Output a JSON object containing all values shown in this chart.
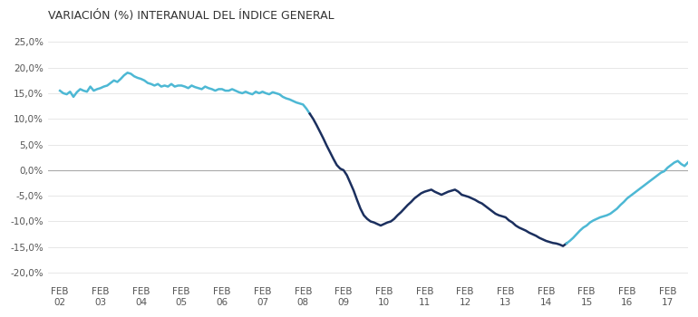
{
  "title": "VARIACIÓN (%) INTERANUAL DEL ÍNDICE GENERAL",
  "title_fontsize": 9,
  "color_light_blue": "#4DB8D4",
  "color_dark_navy": "#1A2F5A",
  "ylim": [
    -0.22,
    0.27
  ],
  "yticks": [
    -0.2,
    -0.15,
    -0.1,
    -0.05,
    0.0,
    0.05,
    0.1,
    0.15,
    0.2,
    0.25
  ],
  "ytick_labels": [
    "-20,0%",
    "-15,0%",
    "-10,0%",
    "-5,0%",
    "0,0%",
    "5,0%",
    "10,0%",
    "15,0%",
    "20,0%",
    "25,0%"
  ],
  "xtick_labels": [
    "FEB\n02",
    "FEB\n03",
    "FEB\n04",
    "FEB\n05",
    "FEB\n06",
    "FEB\n07",
    "FEB\n08",
    "FEB\n09",
    "FEB\n10",
    "FEB\n11",
    "FEB\n12",
    "FEB\n13",
    "FEB\n14",
    "FEB\n15",
    "FEB\n16",
    "FEB\n17"
  ],
  "segment1_color": "#4DB8D4",
  "segment2_color": "#1B2F5E",
  "segment3_color": "#4DB8D4",
  "background_color": "#ffffff",
  "line_width": 1.8,
  "data": {
    "t": [
      0,
      0.083,
      0.167,
      0.25,
      0.333,
      0.417,
      0.5,
      0.583,
      0.667,
      0.75,
      0.833,
      0.917,
      1,
      1.083,
      1.167,
      1.25,
      1.333,
      1.417,
      1.5,
      1.583,
      1.667,
      1.75,
      1.833,
      1.917,
      2,
      2.083,
      2.167,
      2.25,
      2.333,
      2.417,
      2.5,
      2.583,
      2.667,
      2.75,
      2.833,
      2.917,
      3,
      3.083,
      3.167,
      3.25,
      3.333,
      3.417,
      3.5,
      3.583,
      3.667,
      3.75,
      3.833,
      3.917,
      4,
      4.083,
      4.167,
      4.25,
      4.333,
      4.417,
      4.5,
      4.583,
      4.667,
      4.75,
      4.833,
      4.917,
      5,
      5.083,
      5.167,
      5.25,
      5.333,
      5.417,
      5.5,
      5.583,
      5.667,
      5.75,
      5.833,
      5.917,
      6,
      6.083,
      6.167,
      6.25,
      6.333,
      6.417,
      6.5,
      6.583,
      6.667,
      6.75,
      6.833,
      6.917,
      7,
      7.083,
      7.167,
      7.25,
      7.333,
      7.417,
      7.5,
      7.583,
      7.667,
      7.75,
      7.833,
      7.917,
      8,
      8.083,
      8.167,
      8.25,
      8.333,
      8.417,
      8.5,
      8.583,
      8.667,
      8.75,
      8.833,
      8.917,
      9,
      9.083,
      9.167,
      9.25,
      9.333,
      9.417,
      9.5,
      9.583,
      9.667,
      9.75,
      9.833,
      9.917,
      10,
      10.083,
      10.167,
      10.25,
      10.333,
      10.417,
      10.5,
      10.583,
      10.667,
      10.75,
      10.833,
      10.917,
      11,
      11.083,
      11.167,
      11.25,
      11.333,
      11.417,
      11.5,
      11.583,
      11.667,
      11.75,
      11.833,
      11.917,
      12,
      12.083,
      12.167,
      12.25,
      12.333,
      12.417,
      12.5,
      12.583,
      12.667,
      12.75,
      12.833,
      12.917,
      13,
      13.083,
      13.167,
      13.25,
      13.333,
      13.417,
      13.5,
      13.583,
      13.667,
      13.75,
      13.833,
      13.917,
      14,
      14.083,
      14.167,
      14.25,
      14.333,
      14.417,
      14.5,
      14.583,
      14.667,
      14.75,
      14.833,
      14.917,
      15,
      15.083,
      15.167,
      15.25,
      15.333,
      15.417,
      15.5,
      15.583,
      15.667,
      15.75,
      15.833,
      15.917
    ],
    "v": [
      0.155,
      0.15,
      0.148,
      0.153,
      0.143,
      0.152,
      0.158,
      0.155,
      0.153,
      0.163,
      0.155,
      0.158,
      0.16,
      0.163,
      0.165,
      0.17,
      0.175,
      0.172,
      0.178,
      0.185,
      0.19,
      0.188,
      0.183,
      0.18,
      0.178,
      0.175,
      0.17,
      0.168,
      0.165,
      0.168,
      0.163,
      0.165,
      0.163,
      0.168,
      0.163,
      0.165,
      0.165,
      0.163,
      0.16,
      0.165,
      0.162,
      0.16,
      0.158,
      0.163,
      0.16,
      0.158,
      0.155,
      0.158,
      0.158,
      0.155,
      0.155,
      0.158,
      0.155,
      0.152,
      0.15,
      0.153,
      0.15,
      0.148,
      0.153,
      0.15,
      0.153,
      0.15,
      0.148,
      0.152,
      0.15,
      0.148,
      0.143,
      0.14,
      0.138,
      0.135,
      0.132,
      0.13,
      0.128,
      0.12,
      0.11,
      0.1,
      0.088,
      0.075,
      0.062,
      0.048,
      0.035,
      0.022,
      0.01,
      0.003,
      0.0,
      -0.01,
      -0.025,
      -0.04,
      -0.058,
      -0.075,
      -0.088,
      -0.095,
      -0.1,
      -0.102,
      -0.105,
      -0.108,
      -0.105,
      -0.102,
      -0.1,
      -0.095,
      -0.088,
      -0.082,
      -0.075,
      -0.068,
      -0.062,
      -0.055,
      -0.05,
      -0.045,
      -0.042,
      -0.04,
      -0.038,
      -0.042,
      -0.045,
      -0.048,
      -0.045,
      -0.042,
      -0.04,
      -0.038,
      -0.042,
      -0.048,
      -0.05,
      -0.052,
      -0.055,
      -0.058,
      -0.062,
      -0.065,
      -0.07,
      -0.075,
      -0.08,
      -0.085,
      -0.088,
      -0.09,
      -0.092,
      -0.098,
      -0.102,
      -0.108,
      -0.112,
      -0.115,
      -0.118,
      -0.122,
      -0.125,
      -0.128,
      -0.132,
      -0.135,
      -0.138,
      -0.14,
      -0.142,
      -0.143,
      -0.145,
      -0.148,
      -0.143,
      -0.138,
      -0.132,
      -0.125,
      -0.118,
      -0.112,
      -0.108,
      -0.102,
      -0.098,
      -0.095,
      -0.092,
      -0.09,
      -0.088,
      -0.085,
      -0.08,
      -0.075,
      -0.068,
      -0.062,
      -0.055,
      -0.05,
      -0.045,
      -0.04,
      -0.035,
      -0.03,
      -0.025,
      -0.02,
      -0.015,
      -0.01,
      -0.005,
      -0.002,
      0.005,
      0.01,
      0.015,
      0.018,
      0.012,
      0.008,
      0.015,
      0.02,
      0.022,
      0.018,
      0.015,
      0.02
    ]
  }
}
